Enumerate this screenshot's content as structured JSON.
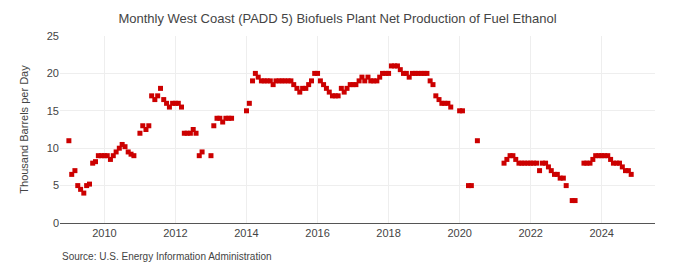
{
  "chart_data": {
    "type": "scatter",
    "title": "Monthly West Coast (PADD 5) Biofuels Plant Net Production of Fuel Ethanol",
    "ylabel": "Thousand Barrels per Day",
    "annotations": [
      "Source: U.S. Energy Information Administration"
    ],
    "color": "#cc0000",
    "marker": "square",
    "grid": true,
    "xlim": [
      2008.75,
      2025.5
    ],
    "xticks": [
      2010,
      2012,
      2014,
      2016,
      2018,
      2020,
      2022,
      2024
    ],
    "ylim": [
      0,
      25
    ],
    "yticks": [
      0,
      5,
      10,
      15,
      20,
      25
    ],
    "x": [
      2009.0,
      2009.08,
      2009.17,
      2009.25,
      2009.33,
      2009.42,
      2009.5,
      2009.58,
      2009.67,
      2009.75,
      2009.83,
      2009.92,
      2010.0,
      2010.08,
      2010.17,
      2010.25,
      2010.33,
      2010.42,
      2010.5,
      2010.58,
      2010.67,
      2010.75,
      2010.83,
      2011.0,
      2011.08,
      2011.17,
      2011.25,
      2011.33,
      2011.42,
      2011.5,
      2011.58,
      2011.67,
      2011.75,
      2011.83,
      2011.92,
      2012.0,
      2012.08,
      2012.17,
      2012.25,
      2012.33,
      2012.42,
      2012.5,
      2012.58,
      2012.67,
      2012.75,
      2013.0,
      2013.08,
      2013.17,
      2013.25,
      2013.33,
      2013.42,
      2013.5,
      2013.58,
      2014.0,
      2014.08,
      2014.17,
      2014.25,
      2014.33,
      2014.42,
      2014.5,
      2014.58,
      2014.67,
      2014.75,
      2014.83,
      2014.92,
      2015.0,
      2015.08,
      2015.17,
      2015.25,
      2015.33,
      2015.42,
      2015.5,
      2015.58,
      2015.67,
      2015.75,
      2015.83,
      2015.92,
      2016.0,
      2016.08,
      2016.17,
      2016.25,
      2016.33,
      2016.42,
      2016.5,
      2016.58,
      2016.67,
      2016.75,
      2016.83,
      2016.92,
      2017.0,
      2017.08,
      2017.17,
      2017.25,
      2017.33,
      2017.42,
      2017.5,
      2017.58,
      2017.67,
      2017.75,
      2017.83,
      2017.92,
      2018.0,
      2018.08,
      2018.17,
      2018.25,
      2018.33,
      2018.42,
      2018.5,
      2018.58,
      2018.67,
      2018.75,
      2018.83,
      2018.92,
      2019.0,
      2019.08,
      2019.17,
      2019.25,
      2019.33,
      2019.42,
      2019.5,
      2019.58,
      2019.67,
      2019.75,
      2020.0,
      2020.08,
      2020.25,
      2020.33,
      2020.5,
      2021.25,
      2021.33,
      2021.42,
      2021.5,
      2021.58,
      2021.67,
      2021.75,
      2021.83,
      2021.92,
      2022.0,
      2022.08,
      2022.17,
      2022.25,
      2022.33,
      2022.42,
      2022.5,
      2022.58,
      2022.67,
      2022.75,
      2022.83,
      2022.92,
      2023.0,
      2023.17,
      2023.25,
      2023.5,
      2023.58,
      2023.67,
      2023.75,
      2023.83,
      2023.92,
      2024.0,
      2024.08,
      2024.17,
      2024.25,
      2024.33,
      2024.42,
      2024.5,
      2024.58,
      2024.67,
      2024.75,
      2024.83
    ],
    "values": [
      11.0,
      6.5,
      7.0,
      5.0,
      4.5,
      4.0,
      5.0,
      5.2,
      8.0,
      8.2,
      9.0,
      9.0,
      9.0,
      9.0,
      8.5,
      9.0,
      9.5,
      10.0,
      10.5,
      10.2,
      9.5,
      9.2,
      9.0,
      12.0,
      13.0,
      12.5,
      13.0,
      17.0,
      16.5,
      17.0,
      18.0,
      16.5,
      16.0,
      15.5,
      16.0,
      16.0,
      16.0,
      15.5,
      12.0,
      12.0,
      12.0,
      12.5,
      12.0,
      9.0,
      9.5,
      9.0,
      13.0,
      14.0,
      14.0,
      13.5,
      14.0,
      14.0,
      14.0,
      15.0,
      16.0,
      19.0,
      20.0,
      19.5,
      19.0,
      19.0,
      19.0,
      19.0,
      18.5,
      19.0,
      19.0,
      19.0,
      19.0,
      19.0,
      19.0,
      18.5,
      18.0,
      17.5,
      18.0,
      18.0,
      18.5,
      19.0,
      20.0,
      20.0,
      19.0,
      18.5,
      18.0,
      17.5,
      17.0,
      17.0,
      17.0,
      18.0,
      17.5,
      18.0,
      18.5,
      18.5,
      18.5,
      19.0,
      19.5,
      19.0,
      19.5,
      19.0,
      19.0,
      19.0,
      19.5,
      20.0,
      20.0,
      20.0,
      21.0,
      21.0,
      21.0,
      20.5,
      20.0,
      20.0,
      19.5,
      20.0,
      20.0,
      20.0,
      20.0,
      20.0,
      20.0,
      19.0,
      18.5,
      17.0,
      16.5,
      16.0,
      16.0,
      16.0,
      15.5,
      15.0,
      15.0,
      5.0,
      5.0,
      11.0,
      8.0,
      8.5,
      9.0,
      9.0,
      8.5,
      8.0,
      8.0,
      8.0,
      8.0,
      8.0,
      8.0,
      8.0,
      7.0,
      8.0,
      8.0,
      7.5,
      7.0,
      6.5,
      6.5,
      6.0,
      6.0,
      5.0,
      3.0,
      3.0,
      8.0,
      8.0,
      8.0,
      8.5,
      9.0,
      9.0,
      9.0,
      9.0,
      9.0,
      8.5,
      8.0,
      8.0,
      8.0,
      7.5,
      7.0,
      7.0,
      6.5
    ]
  }
}
